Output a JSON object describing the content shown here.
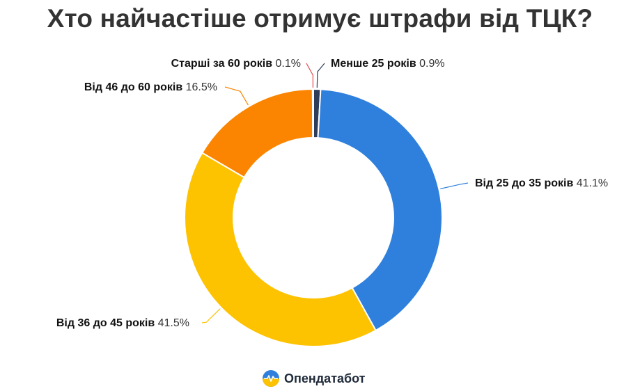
{
  "page": {
    "title": "Хто найчастіше отримує штрафи від ТЦК?"
  },
  "brand": {
    "name": "Опендатабот",
    "logo_icon": "opendatabot-logo-icon"
  },
  "chart_data": {
    "type": "pie",
    "style": "donut",
    "title": "Хто найчастіше отримує штрафи від ТЦК?",
    "unit": "%",
    "legend": "none",
    "slices": [
      {
        "label": "Менше 25 років",
        "value": 0.9,
        "value_text": "0.9%",
        "color": "#2e3e5a"
      },
      {
        "label": "Від 25 до 35 років",
        "value": 41.1,
        "value_text": "41.1%",
        "color": "#2f80dd"
      },
      {
        "label": "Від 36 до 45 років",
        "value": 41.5,
        "value_text": "41.5%",
        "color": "#fdc200"
      },
      {
        "label": "Від 46 до 60 років",
        "value": 16.5,
        "value_text": "16.5%",
        "color": "#fb8500"
      },
      {
        "label": "Старші за 60 років",
        "value": 0.1,
        "value_text": "0.1%",
        "color": "#e5484d"
      }
    ]
  }
}
